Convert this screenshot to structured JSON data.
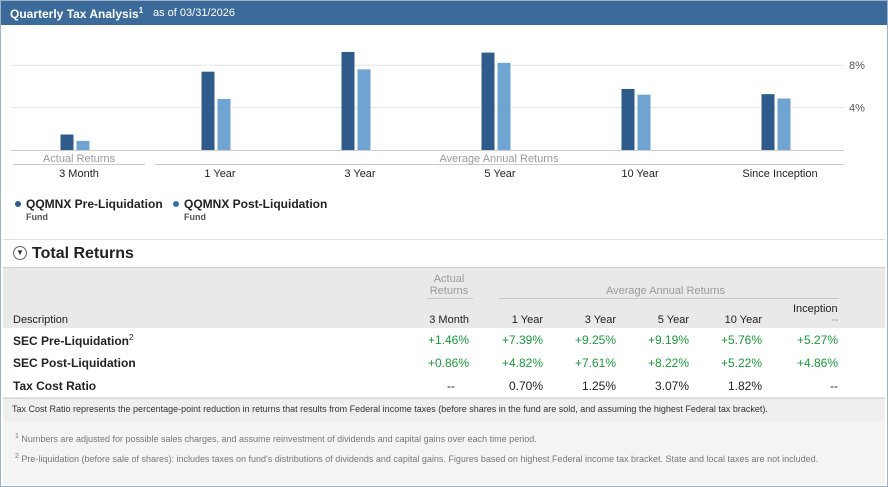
{
  "header": {
    "title": "Quarterly Tax Analysis",
    "title_sup": "1",
    "as_of": "as of 03/31/2026"
  },
  "chart_data": {
    "type": "bar",
    "categories": [
      "3 Month",
      "1 Year",
      "3 Year",
      "5 Year",
      "10 Year",
      "Since Inception"
    ],
    "series": [
      {
        "name": "QQMNX Pre-Liquidation Fund",
        "color": "#2e5b8a",
        "values": [
          1.46,
          7.39,
          9.25,
          9.19,
          5.76,
          5.27
        ]
      },
      {
        "name": "QQMNX Post-Liquidation Fund",
        "color": "#6fa3d2",
        "values": [
          0.86,
          4.82,
          7.61,
          8.22,
          5.22,
          4.86
        ]
      }
    ],
    "yticks": [
      "8%",
      "4%"
    ],
    "ytick_values": [
      8,
      4
    ],
    "ylim": [
      0,
      10
    ],
    "group_labels": {
      "actual": "Actual Returns",
      "average": "Average Annual Returns"
    }
  },
  "legend": [
    {
      "label": "QQMNX Pre-Liquidation",
      "sub": "Fund",
      "color": "#2e5b8a"
    },
    {
      "label": "QQMNX Post-Liquidation",
      "sub": "Fund",
      "color": "#2e6fb0"
    }
  ],
  "section": {
    "title": "Total Returns",
    "toggle_icon": "collapse-circle-icon"
  },
  "table": {
    "headers": {
      "description": "Description",
      "actual_group_line1": "Actual",
      "actual_group_line2": "Returns",
      "average_group": "Average Annual Returns",
      "inception_top": "Inception",
      "inception_sub": "--",
      "columns": [
        "3 Month",
        "1 Year",
        "3 Year",
        "5 Year",
        "10 Year"
      ]
    },
    "rows": [
      {
        "label": "SEC Pre-Liquidation",
        "sup": "2",
        "values": [
          "+1.46%",
          "+7.39%",
          "+9.25%",
          "+9.19%",
          "+5.76%",
          "+5.27%"
        ],
        "positive": true
      },
      {
        "label": "SEC Post-Liquidation",
        "sup": "",
        "values": [
          "+0.86%",
          "+4.82%",
          "+7.61%",
          "+8.22%",
          "+5.22%",
          "+4.86%"
        ],
        "positive": true
      },
      {
        "label": "Tax Cost Ratio",
        "sup": "",
        "values": [
          "--",
          "0.70%",
          "1.25%",
          "3.07%",
          "1.82%",
          "--"
        ],
        "positive": false
      }
    ]
  },
  "note": "Tax Cost Ratio represents the percentage-point reduction in returns that results from Federal income taxes (before shares in the fund are sold, and assuming the highest Federal tax bracket).",
  "footnotes": [
    {
      "num": "1",
      "text": "Numbers are adjusted for possible sales charges, and assume reinvestment of dividends and capital gains over each time period."
    },
    {
      "num": "2",
      "text": "Pre-liquidation (before sale of shares): includes taxes on fund's distributions of dividends and capital gains. Figures based on highest Federal income tax bracket. State and local taxes are not included."
    }
  ]
}
